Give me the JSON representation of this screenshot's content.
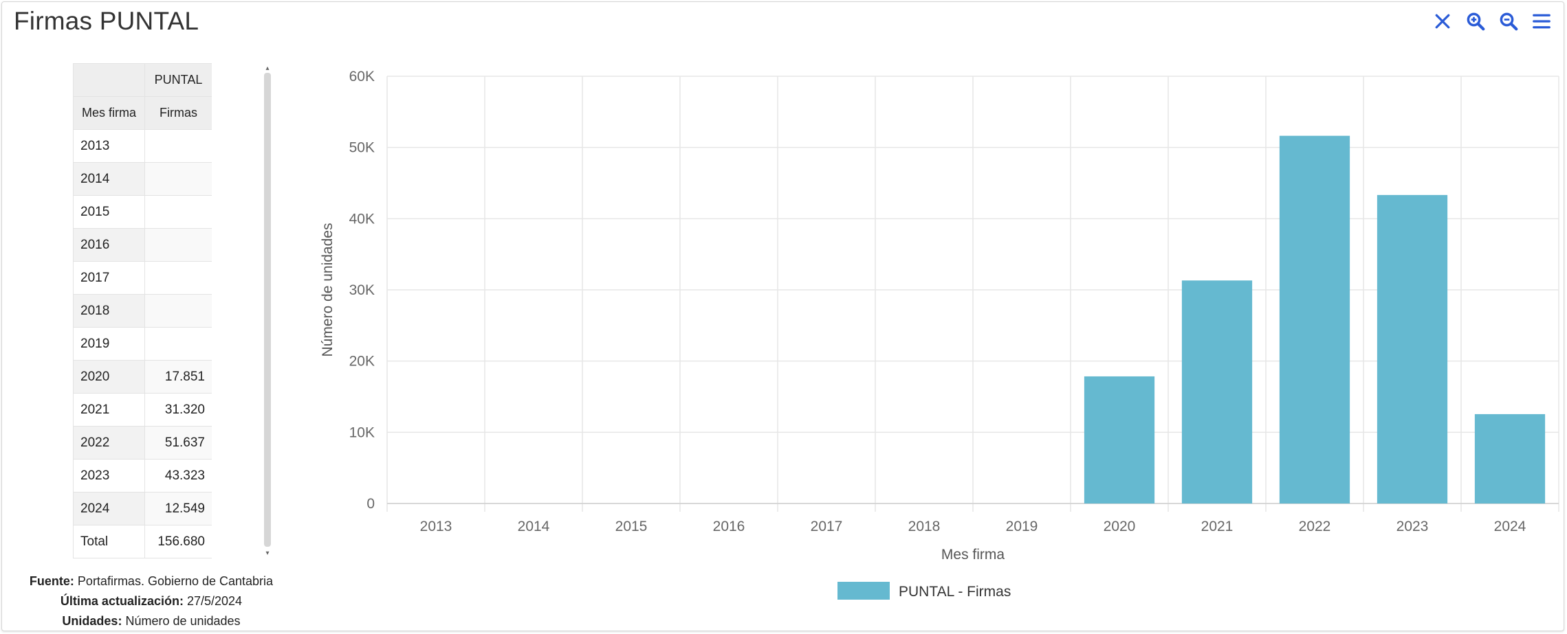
{
  "title": "Firmas PUNTAL",
  "toolbar": [
    {
      "name": "close-icon",
      "label": "close"
    },
    {
      "name": "zoom-in-icon",
      "label": "zoom in"
    },
    {
      "name": "zoom-out-icon",
      "label": "zoom out"
    },
    {
      "name": "menu-icon",
      "label": "menu"
    }
  ],
  "accent_color": "#2a5bd7",
  "table": {
    "group_header": "PUNTAL",
    "col1_header": "Mes firma",
    "col2_header": "Firmas",
    "rows": [
      {
        "label": "2013",
        "value": ""
      },
      {
        "label": "2014",
        "value": ""
      },
      {
        "label": "2015",
        "value": ""
      },
      {
        "label": "2016",
        "value": ""
      },
      {
        "label": "2017",
        "value": ""
      },
      {
        "label": "2018",
        "value": ""
      },
      {
        "label": "2019",
        "value": ""
      },
      {
        "label": "2020",
        "value": "17.851"
      },
      {
        "label": "2021",
        "value": "31.320"
      },
      {
        "label": "2022",
        "value": "51.637"
      },
      {
        "label": "2023",
        "value": "43.323"
      },
      {
        "label": "2024",
        "value": "12.549"
      }
    ],
    "total_label": "Total",
    "total_value": "156.680"
  },
  "footer": {
    "source_label": "Fuente:",
    "source_value": "Portafirmas. Gobierno de Cantabria",
    "updated_label": "Última actualización:",
    "updated_value": "27/5/2024",
    "units_label": "Unidades:",
    "units_value": "Número de unidades"
  },
  "chart_data": {
    "type": "bar",
    "categories": [
      "2013",
      "2014",
      "2015",
      "2016",
      "2017",
      "2018",
      "2019",
      "2020",
      "2021",
      "2022",
      "2023",
      "2024"
    ],
    "series": [
      {
        "name": "PUNTAL - Firmas",
        "color": "#65b9d0",
        "values": [
          0,
          0,
          0,
          0,
          0,
          0,
          0,
          17851,
          31320,
          51637,
          43323,
          12549
        ]
      }
    ],
    "ylim": [
      0,
      60000
    ],
    "yticks": [
      0,
      10000,
      20000,
      30000,
      40000,
      50000,
      60000
    ],
    "ytick_labels": [
      "0",
      "10K",
      "20K",
      "30K",
      "40K",
      "50K",
      "60K"
    ],
    "xlabel": "Mes firma",
    "ylabel": "Número de unidades",
    "grid": true,
    "legend_position": "bottom-center"
  }
}
